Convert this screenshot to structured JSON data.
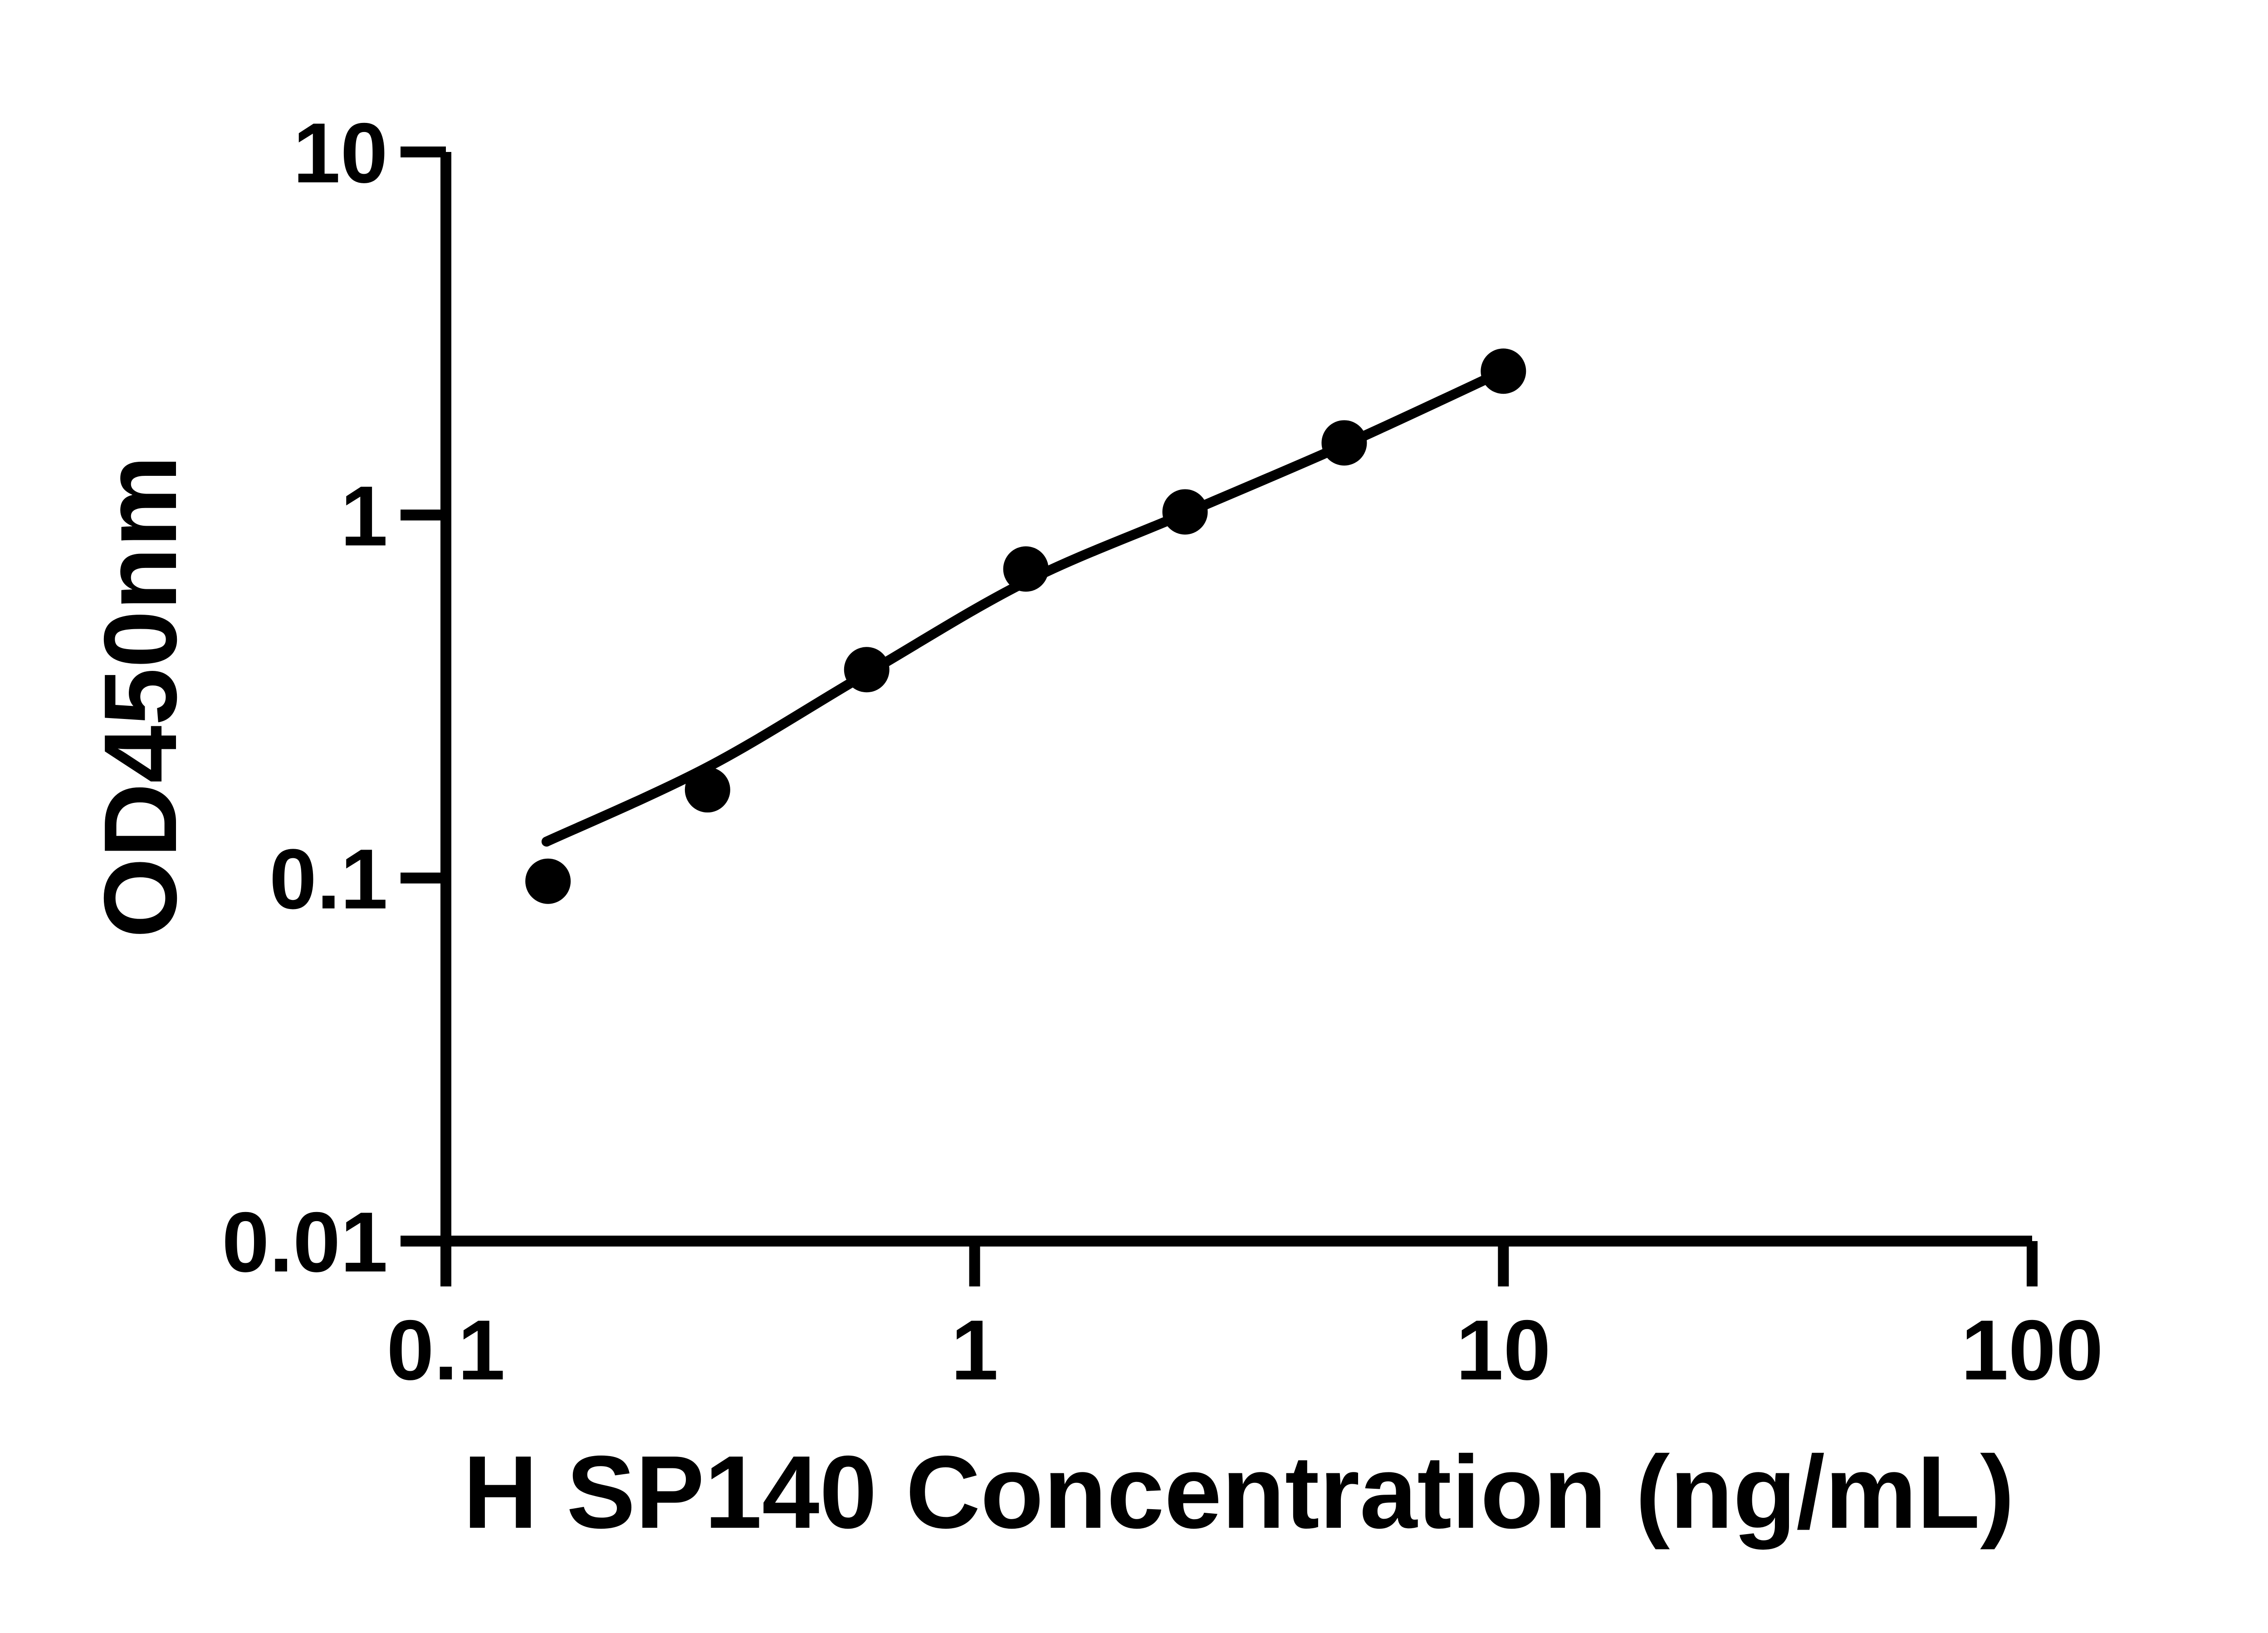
{
  "figure": {
    "background_color": "#ffffff",
    "foreground_color": "#000000"
  },
  "chart_data": {
    "type": "scatter",
    "title": "",
    "xlabel": "H SP140 Concentration (ng/mL)",
    "ylabel": "OD450nm",
    "x_scale": "log",
    "y_scale": "log",
    "xlim": [
      0.1,
      100
    ],
    "ylim": [
      0.01,
      10
    ],
    "x_ticks": [
      0.1,
      1,
      10,
      100
    ],
    "x_tick_labels": [
      "0.1",
      "1",
      "10",
      "100"
    ],
    "y_ticks": [
      0.01,
      0.1,
      1,
      10
    ],
    "y_tick_labels": [
      "0.01",
      "0.1",
      "1",
      "10"
    ],
    "grid": false,
    "legend": null,
    "series": [
      {
        "name": "standard-points",
        "marker": "circle",
        "color": "#000000",
        "points": [
          [
            0.156,
            0.098
          ],
          [
            0.3125,
            0.175
          ],
          [
            0.625,
            0.375
          ],
          [
            1.25,
            0.71
          ],
          [
            2.5,
            1.02
          ],
          [
            5,
            1.58
          ],
          [
            10,
            2.49
          ]
        ]
      }
    ],
    "fit_curve": {
      "name": "standard-curve-fit",
      "color": "#000000",
      "points": [
        [
          0.155,
          0.126
        ],
        [
          0.3125,
          0.202
        ],
        [
          0.625,
          0.366
        ],
        [
          1.25,
          0.655
        ],
        [
          2.5,
          1.01
        ],
        [
          5,
          1.56
        ],
        [
          10,
          2.49
        ]
      ]
    }
  }
}
